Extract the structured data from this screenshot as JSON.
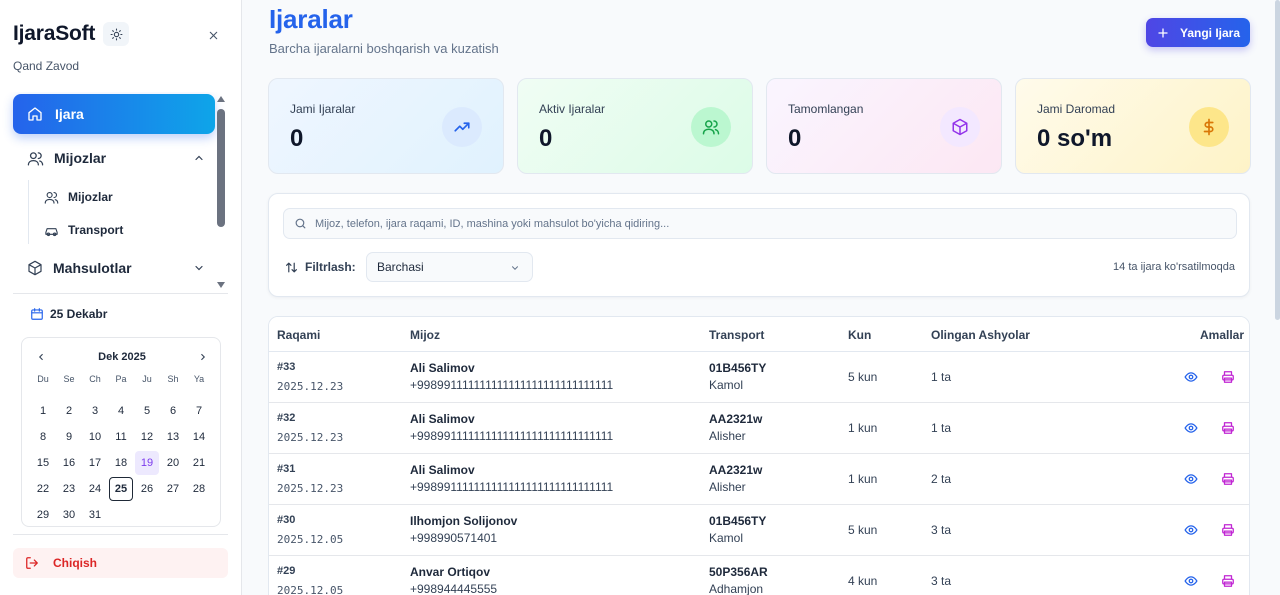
{
  "sidebar": {
    "brand": "IjaraSoft",
    "company": "Qand Zavod",
    "nav": {
      "active_label": "Ijara",
      "group_clients": "Mijozlar",
      "sub_clients": "Mijozlar",
      "sub_transport": "Transport",
      "group_products": "Mahsulotlar"
    },
    "date_label": "25 Dekabr",
    "calendar": {
      "month": "Dek 2025",
      "weekdays": [
        "Du",
        "Se",
        "Ch",
        "Pa",
        "Ju",
        "Sh",
        "Ya"
      ],
      "highlighted_day": "19",
      "today": "25"
    },
    "logout_label": "Chiqish"
  },
  "header": {
    "title": "Ijaralar",
    "subtitle": "Barcha ijaralarni boshqarish va kuzatish",
    "new_button": "Yangi Ijara"
  },
  "stats": [
    {
      "title": "Jami Ijaralar",
      "value": "0",
      "icon": "trending-up-icon",
      "color": "#2563eb"
    },
    {
      "title": "Aktiv Ijaralar",
      "value": "0",
      "icon": "users-icon",
      "color": "#16a34a"
    },
    {
      "title": "Tamomlangan",
      "value": "0",
      "icon": "package-icon",
      "color": "#9333ea"
    },
    {
      "title": "Jami Daromad",
      "value": "0 so'm",
      "icon": "dollar-icon",
      "color": "#d97706"
    }
  ],
  "filters": {
    "search_placeholder": "Mijoz, telefon, ijara raqami, ID, mashina yoki mahsulot bo'yicha qidiring...",
    "filter_label": "Filtrlash:",
    "filter_value": "Barchasi",
    "count_text": "14 ta ijara ko'rsatilmoqda"
  },
  "table": {
    "headers": {
      "number": "Raqami",
      "client": "Mijoz",
      "transport": "Transport",
      "days": "Kun",
      "items": "Olingan Ashyolar",
      "actions": "Amallar"
    },
    "rows": [
      {
        "id": "#33",
        "date": "2025.12.23",
        "name": "Ali Salimov",
        "phone": "+998991111111111111111111111111111",
        "plate": "01B456TY",
        "driver": "Kamol",
        "days": "5 kun",
        "items": "1 ta"
      },
      {
        "id": "#32",
        "date": "2025.12.23",
        "name": "Ali Salimov",
        "phone": "+998991111111111111111111111111111",
        "plate": "AA2321w",
        "driver": "Alisher",
        "days": "1 kun",
        "items": "1 ta"
      },
      {
        "id": "#31",
        "date": "2025.12.23",
        "name": "Ali Salimov",
        "phone": "+998991111111111111111111111111111",
        "plate": "AA2321w",
        "driver": "Alisher",
        "days": "1 kun",
        "items": "2 ta"
      },
      {
        "id": "#30",
        "date": "2025.12.05",
        "name": "Ilhomjon Solijonov",
        "phone": "+998990571401",
        "plate": "01B456TY",
        "driver": "Kamol",
        "days": "5 kun",
        "items": "3 ta"
      },
      {
        "id": "#29",
        "date": "2025.12.05",
        "name": "Anvar Ortiqov",
        "phone": "+998944445555",
        "plate": "50P356AR",
        "driver": "Adhamjon",
        "days": "4 kun",
        "items": "3 ta"
      }
    ]
  }
}
